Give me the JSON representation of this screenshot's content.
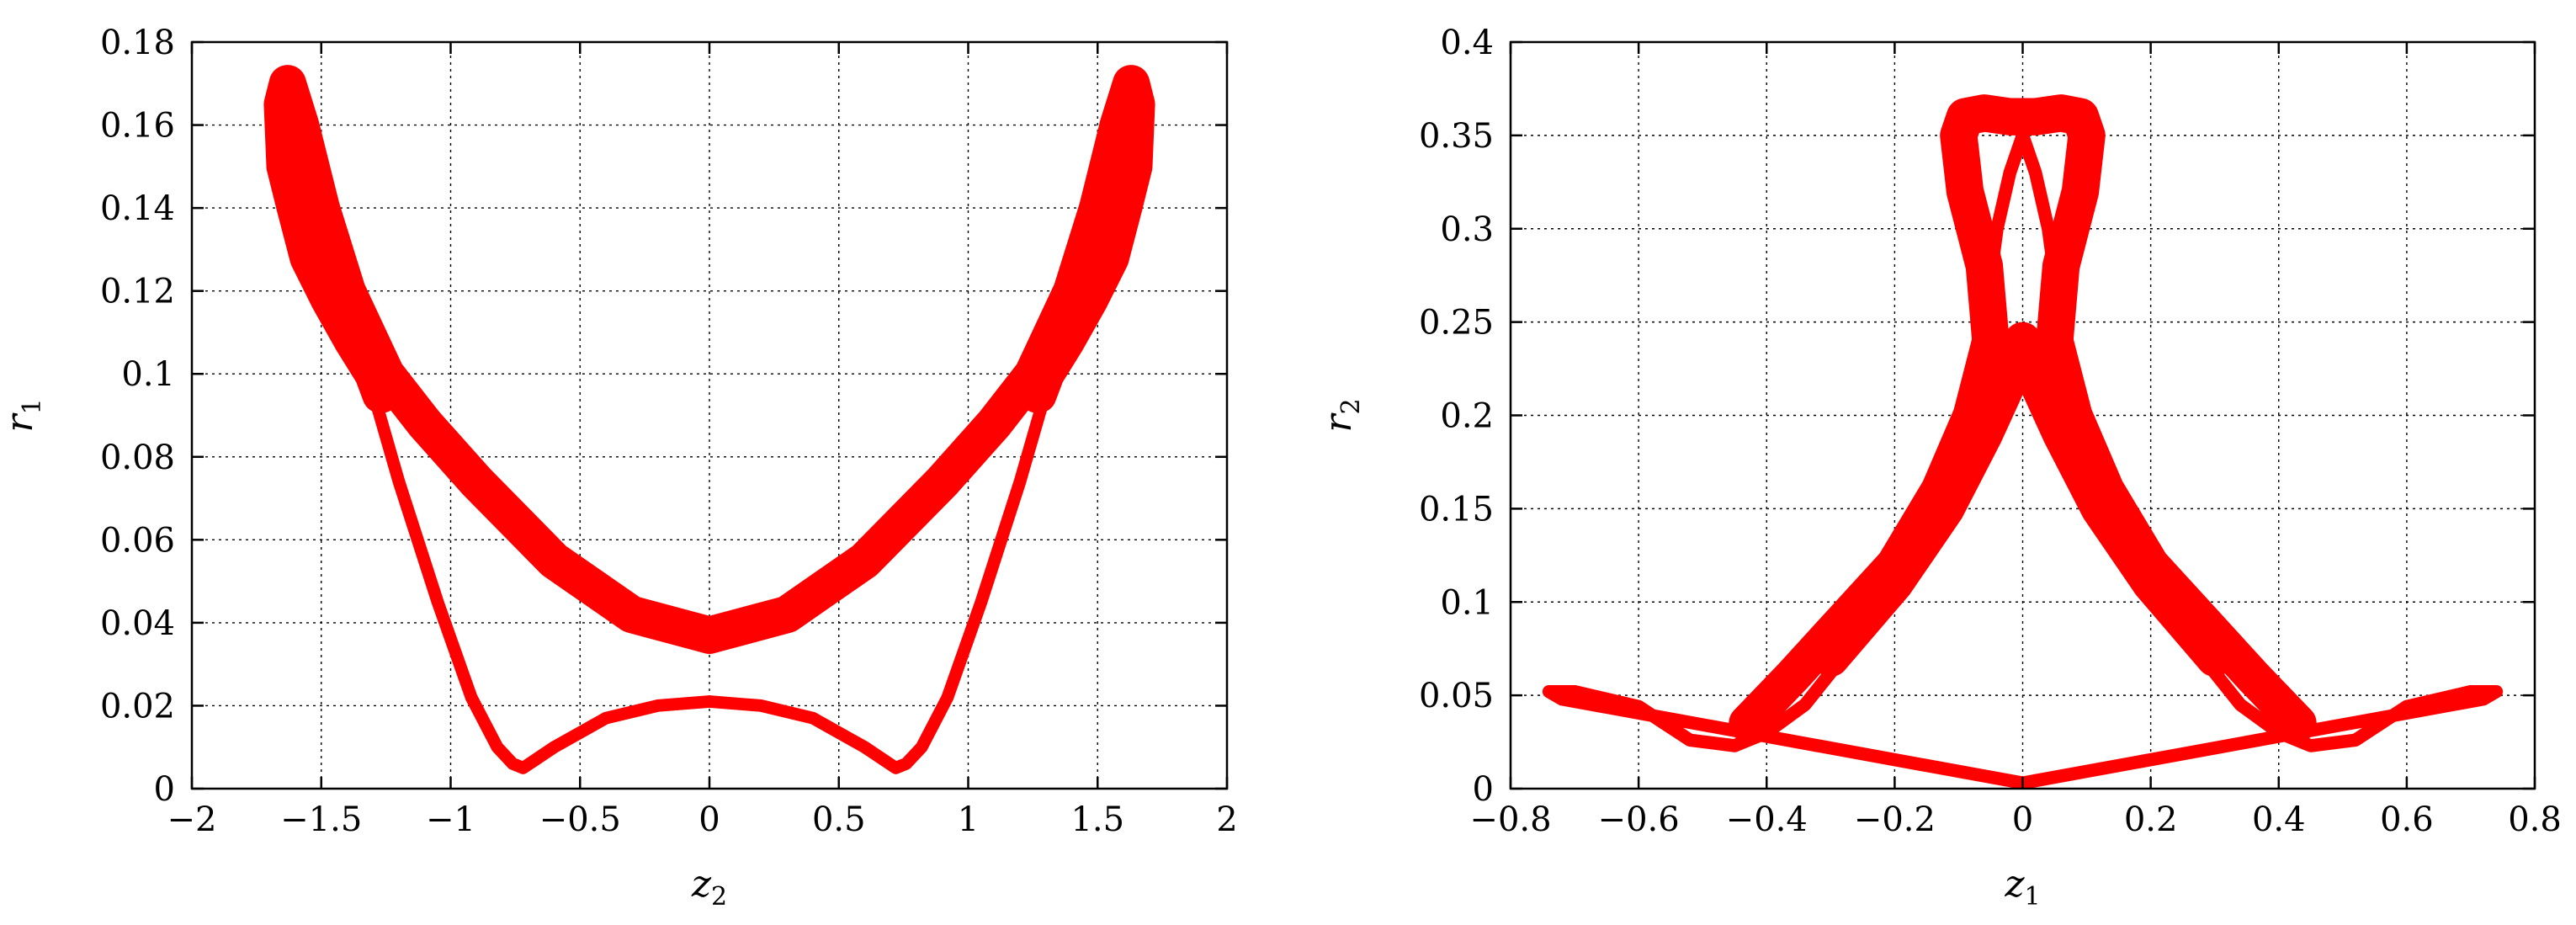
{
  "chart_data": [
    {
      "type": "line",
      "xlabel": "z",
      "xlabel_sub": "2",
      "ylabel": "r",
      "ylabel_sub": "1",
      "xlim": [
        -2,
        2
      ],
      "ylim": [
        0,
        0.18
      ],
      "xticks": [
        -2,
        -1.5,
        -1,
        -0.5,
        0,
        0.5,
        1,
        1.5,
        2
      ],
      "xtick_labels": [
        "−2",
        "−1.5",
        "−1",
        "−0.5",
        "0",
        "0.5",
        "1",
        "1.5",
        "2"
      ],
      "yticks": [
        0,
        0.02,
        0.04,
        0.06,
        0.08,
        0.1,
        0.12,
        0.14,
        0.16,
        0.18
      ],
      "ytick_labels": [
        "0",
        "0.02",
        "0.04",
        "0.06",
        "0.08",
        "0.1",
        "0.12",
        "0.14",
        "0.16",
        "0.18"
      ],
      "grid": true,
      "color": "#ff0000",
      "series": [
        {
          "band_width": 0.009,
          "x": [
            0,
            0.3,
            0.6,
            0.9,
            1.1,
            1.25,
            1.4,
            1.5,
            1.58,
            1.63,
            1.65,
            1.64,
            1.6,
            1.55,
            1.47,
            1.38,
            1.3,
            1.27
          ],
          "y": [
            0.037,
            0.042,
            0.055,
            0.074,
            0.088,
            0.1,
            0.12,
            0.14,
            0.16,
            0.17,
            0.165,
            0.15,
            0.14,
            0.128,
            0.118,
            0.108,
            0.1,
            0.095
          ]
        },
        {
          "band_width": 0.009,
          "x": [
            0,
            -0.3,
            -0.6,
            -0.9,
            -1.1,
            -1.25,
            -1.4,
            -1.5,
            -1.58,
            -1.63,
            -1.65,
            -1.64,
            -1.6,
            -1.55,
            -1.47,
            -1.38,
            -1.3,
            -1.27
          ],
          "y": [
            0.037,
            0.042,
            0.055,
            0.074,
            0.088,
            0.1,
            0.12,
            0.14,
            0.16,
            0.17,
            0.165,
            0.15,
            0.14,
            0.128,
            0.118,
            0.108,
            0.1,
            0.095
          ]
        },
        {
          "band_width": 0.003,
          "x": [
            -1.62,
            -1.45,
            -1.32,
            -1.2,
            -1.05,
            -0.92,
            -0.82,
            -0.76,
            -0.72,
            -0.6,
            -0.4,
            -0.2,
            0,
            0.2,
            0.4,
            0.6,
            0.72,
            0.76,
            0.82,
            0.92,
            1.05,
            1.2,
            1.32,
            1.45,
            1.62
          ],
          "y": [
            0.165,
            0.13,
            0.1,
            0.074,
            0.045,
            0.022,
            0.01,
            0.006,
            0.005,
            0.01,
            0.017,
            0.02,
            0.021,
            0.02,
            0.017,
            0.01,
            0.005,
            0.006,
            0.01,
            0.022,
            0.045,
            0.074,
            0.1,
            0.13,
            0.165
          ]
        }
      ]
    },
    {
      "type": "line",
      "xlabel": "z",
      "xlabel_sub": "1",
      "ylabel": "r",
      "ylabel_sub": "2",
      "xlim": [
        -0.8,
        0.8
      ],
      "ylim": [
        0,
        0.4
      ],
      "xticks": [
        -0.8,
        -0.6,
        -0.4,
        -0.2,
        0,
        0.2,
        0.4,
        0.6,
        0.8
      ],
      "xtick_labels": [
        "−0.8",
        "−0.6",
        "−0.4",
        "−0.2",
        "0",
        "0.2",
        "0.4",
        "0.6",
        "0.8"
      ],
      "yticks": [
        0,
        0.05,
        0.1,
        0.15,
        0.2,
        0.25,
        0.3,
        0.35,
        0.4
      ],
      "ytick_labels": [
        "0",
        "0.05",
        "0.1",
        "0.15",
        "0.2",
        "0.25",
        "0.3",
        "0.35",
        "0.4"
      ],
      "grid": true,
      "color": "#ff0000",
      "series": [
        {
          "band_width": 0.007,
          "x": [
            0,
            -0.72,
            -0.74,
            -0.7,
            -0.6,
            -0.52,
            -0.45,
            -0.4,
            -0.34,
            -0.27,
            -0.2,
            -0.14,
            -0.09,
            -0.06,
            -0.04,
            -0.02,
            0
          ],
          "y": [
            0.003,
            0.048,
            0.052,
            0.052,
            0.044,
            0.026,
            0.023,
            0.03,
            0.045,
            0.075,
            0.11,
            0.15,
            0.2,
            0.25,
            0.3,
            0.33,
            0.35
          ]
        },
        {
          "band_width": 0.007,
          "x": [
            0,
            0.72,
            0.74,
            0.7,
            0.6,
            0.52,
            0.45,
            0.4,
            0.34,
            0.27,
            0.2,
            0.14,
            0.09,
            0.06,
            0.04,
            0.02,
            0
          ],
          "y": [
            0.003,
            0.048,
            0.052,
            0.052,
            0.044,
            0.026,
            0.023,
            0.03,
            0.045,
            0.075,
            0.11,
            0.15,
            0.2,
            0.25,
            0.3,
            0.33,
            0.35
          ]
        },
        {
          "band_width": 0.02,
          "x": [
            -0.43,
            -0.36,
            -0.28,
            -0.2,
            -0.13,
            -0.08,
            -0.05,
            -0.06,
            -0.09,
            -0.1,
            -0.09,
            -0.06,
            -0.02,
            0.02,
            0.06,
            0.09,
            0.1,
            0.09,
            0.06,
            0.05,
            0.08,
            0.13,
            0.2,
            0.28,
            0.36,
            0.43
          ],
          "y": [
            0.035,
            0.06,
            0.09,
            0.12,
            0.16,
            0.2,
            0.24,
            0.28,
            0.32,
            0.35,
            0.36,
            0.362,
            0.36,
            0.36,
            0.362,
            0.36,
            0.35,
            0.32,
            0.28,
            0.24,
            0.2,
            0.16,
            0.12,
            0.09,
            0.06,
            0.035
          ]
        },
        {
          "band_width": 0.02,
          "x": [
            -0.3,
            -0.2,
            -0.12,
            -0.06,
            -0.02,
            0,
            0.02,
            0.06,
            0.12,
            0.2,
            0.3
          ],
          "y": [
            0.07,
            0.11,
            0.15,
            0.19,
            0.22,
            0.24,
            0.22,
            0.19,
            0.15,
            0.11,
            0.07
          ]
        }
      ]
    }
  ]
}
